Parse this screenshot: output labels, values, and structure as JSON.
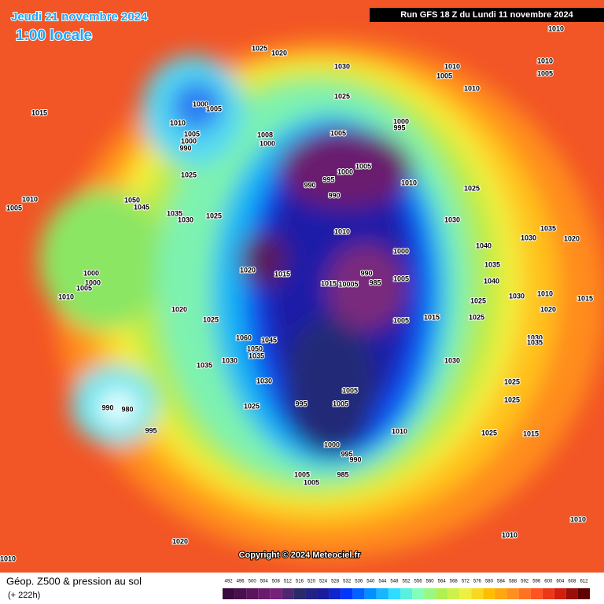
{
  "header": {
    "date": "Jeudi 21 novembre 2024",
    "time": "1:00 locale",
    "run": "Run GFS 18 Z du Lundi 11 novembre 2024"
  },
  "map": {
    "pressure_labels": [
      1025,
      1020,
      1030,
      1010,
      1010,
      1005,
      1010,
      1005,
      1010,
      1015,
      1000,
      1005,
      1025,
      1010,
      1005,
      1000,
      990,
      1000,
      995,
      1005,
      1008,
      1000,
      1000,
      1005,
      995,
      990,
      990,
      1010,
      1025,
      1025,
      1010,
      1005,
      1050,
      1045,
      1035,
      1030,
      1025,
      1030,
      1010,
      1040,
      1030,
      1035,
      1020,
      1000,
      1020,
      1015,
      990,
      985,
      1015,
      10005,
      1005,
      1035,
      1040,
      1030,
      1025,
      1010,
      1015,
      1000,
      1000,
      1005,
      1010,
      1020,
      1025,
      1015,
      1005,
      1025,
      1020,
      1030,
      1035,
      1060,
      1045,
      1050,
      1035,
      1030,
      1035,
      1030,
      1030,
      1005,
      1025,
      1025,
      995,
      1005,
      1025,
      990,
      980,
      995,
      1010,
      1025,
      1015,
      1000,
      995,
      990,
      1005,
      1005,
      985,
      1010,
      1010,
      1020,
      1010
    ]
  },
  "copyright": "Copyright © 2024 Meteociel.fr",
  "footer": {
    "title": "Géop. Z500 & pression au sol",
    "lead": "(+ 222h)"
  },
  "legend": {
    "levels": [
      492,
      496,
      500,
      504,
      508,
      512,
      516,
      520,
      524,
      528,
      532,
      536,
      540,
      544,
      548,
      552,
      556,
      560,
      564,
      568,
      572,
      576,
      580,
      584,
      588,
      592,
      596,
      600,
      604,
      608,
      612
    ]
  }
}
